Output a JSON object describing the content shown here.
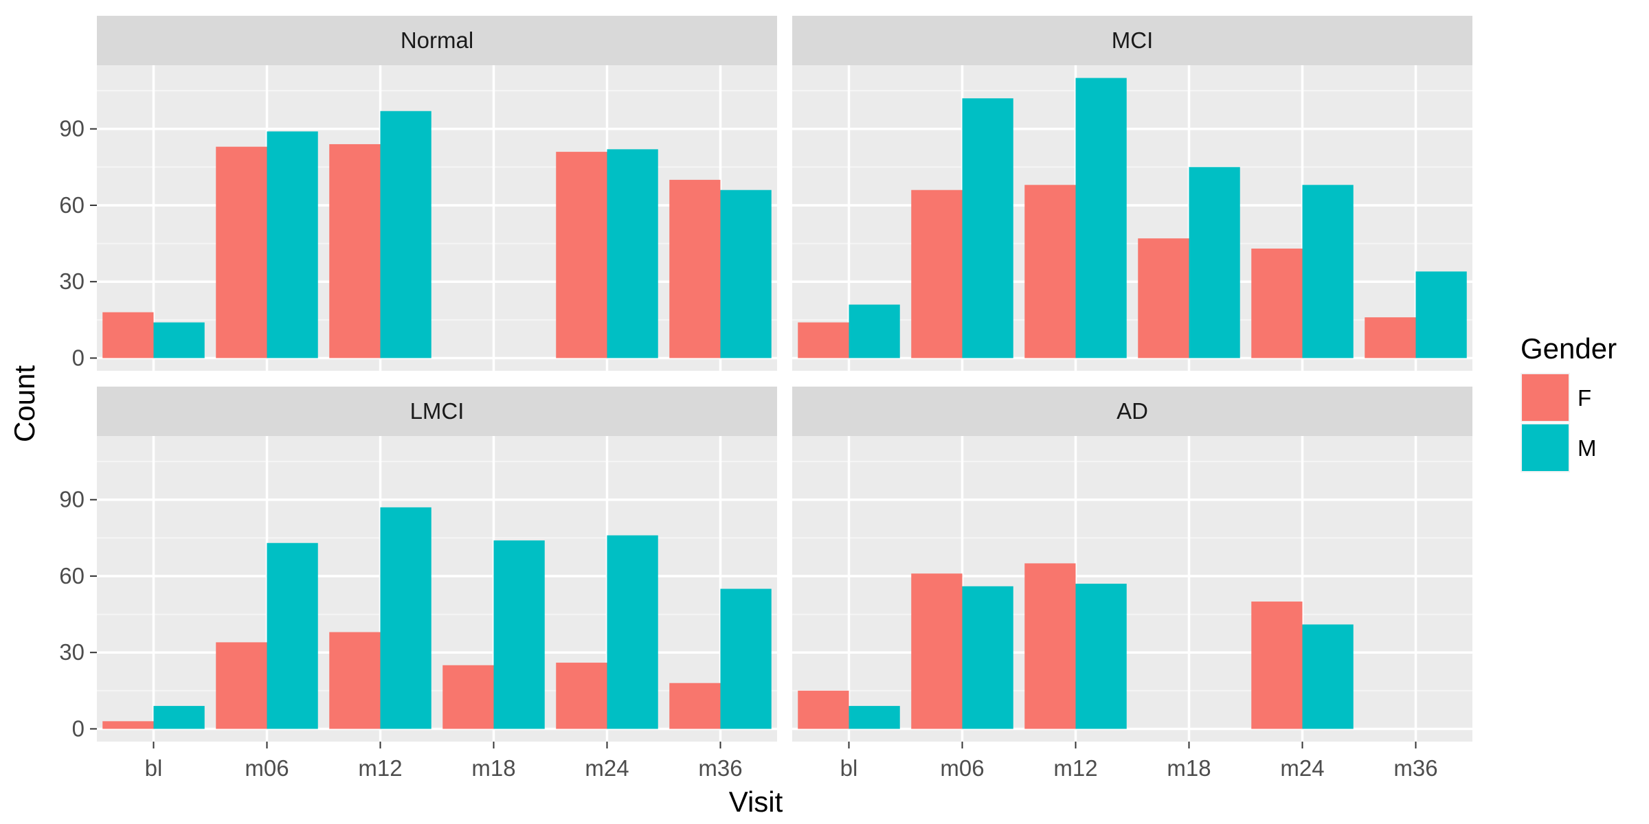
{
  "chart_data": {
    "type": "bar",
    "categories": [
      "bl",
      "m06",
      "m12",
      "m18",
      "m24",
      "m36"
    ],
    "xlabel": "Visit",
    "ylabel": "Count",
    "yticks": [
      0,
      30,
      60,
      90
    ],
    "ylim": [
      -5,
      115
    ],
    "grid": true,
    "legend": {
      "title": "Gender",
      "position": "right",
      "entries": [
        {
          "name": "F",
          "color": "#F8766D"
        },
        {
          "name": "M",
          "color": "#00BFC4"
        }
      ]
    },
    "facets": [
      {
        "name": "Normal",
        "series": [
          {
            "name": "F",
            "values": [
              18,
              83,
              84,
              null,
              81,
              70
            ]
          },
          {
            "name": "M",
            "values": [
              14,
              89,
              97,
              null,
              82,
              66
            ]
          }
        ]
      },
      {
        "name": "MCI",
        "series": [
          {
            "name": "F",
            "values": [
              14,
              66,
              68,
              47,
              43,
              16
            ]
          },
          {
            "name": "M",
            "values": [
              21,
              102,
              110,
              75,
              68,
              34
            ]
          }
        ]
      },
      {
        "name": "LMCI",
        "series": [
          {
            "name": "F",
            "values": [
              3,
              34,
              38,
              25,
              26,
              18
            ]
          },
          {
            "name": "M",
            "values": [
              9,
              73,
              87,
              74,
              76,
              55
            ]
          }
        ]
      },
      {
        "name": "AD",
        "series": [
          {
            "name": "F",
            "values": [
              15,
              61,
              65,
              null,
              50,
              null
            ]
          },
          {
            "name": "M",
            "values": [
              9,
              56,
              57,
              null,
              41,
              null
            ]
          }
        ]
      }
    ]
  }
}
